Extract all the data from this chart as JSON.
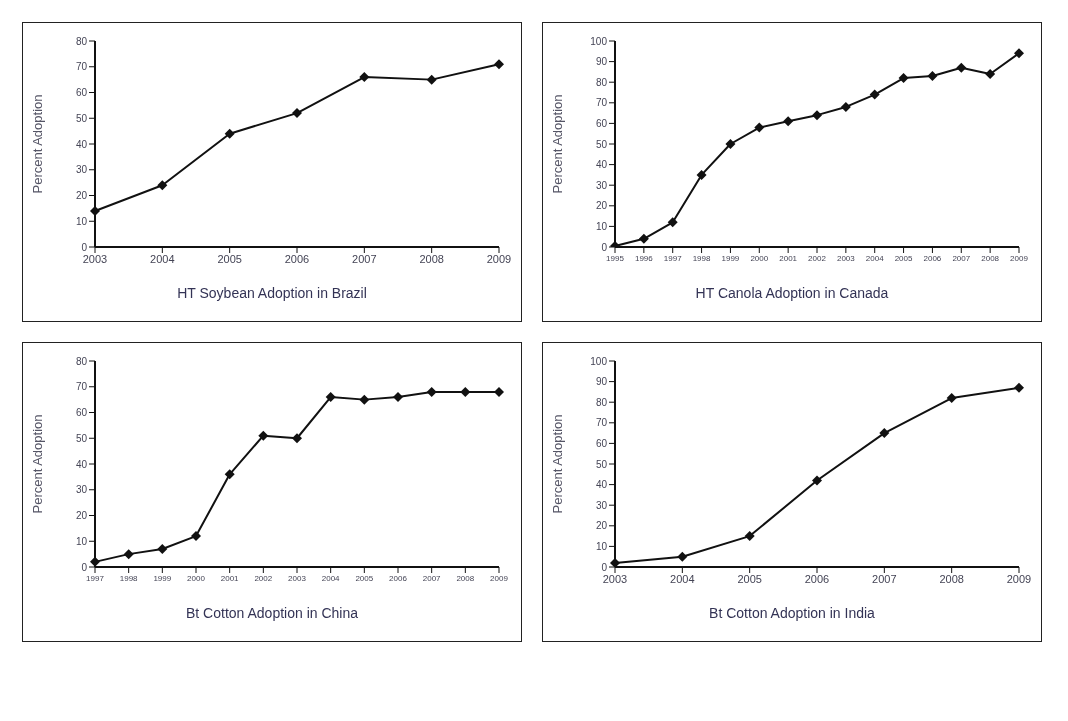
{
  "chart_data": [
    {
      "type": "line",
      "title": "HT Soybean Adoption in Brazil",
      "ylabel": "Percent Adoption",
      "categories": [
        "2003",
        "2004",
        "2005",
        "2006",
        "2007",
        "2008",
        "2009"
      ],
      "series": [
        {
          "color": "#111111",
          "values": [
            14,
            24,
            44,
            52,
            66,
            65,
            71
          ]
        }
      ],
      "ylim": [
        0,
        80
      ],
      "yticks": [
        0,
        10,
        20,
        30,
        40,
        50,
        60,
        70,
        80
      ],
      "marker": "diamond",
      "grid": false,
      "legend": false
    },
    {
      "type": "line",
      "title": "HT Canola Adoption in Canada",
      "ylabel": "Percent Adoption",
      "categories": [
        "1995",
        "1996",
        "1997",
        "1998",
        "1999",
        "2000",
        "2001",
        "2002",
        "2003",
        "2004",
        "2005",
        "2006",
        "2007",
        "2008",
        "2009"
      ],
      "series": [
        {
          "color": "#111111",
          "values": [
            0.5,
            4,
            12,
            35,
            50,
            58,
            61,
            64,
            68,
            74,
            82,
            83,
            87,
            84,
            94
          ]
        }
      ],
      "ylim": [
        0,
        100
      ],
      "yticks": [
        0,
        10,
        20,
        30,
        40,
        50,
        60,
        70,
        80,
        90,
        100
      ],
      "marker": "diamond",
      "grid": false,
      "legend": false
    },
    {
      "type": "line",
      "title": "Bt Cotton Adoption in China",
      "ylabel": "Percent Adoption",
      "categories": [
        "1997",
        "1998",
        "1999",
        "2000",
        "2001",
        "2002",
        "2003",
        "2004",
        "2005",
        "2006",
        "2007",
        "2008",
        "2009"
      ],
      "series": [
        {
          "color": "#111111",
          "values": [
            2,
            5,
            7,
            12,
            36,
            51,
            50,
            66,
            65,
            66,
            68,
            68,
            68
          ]
        }
      ],
      "ylim": [
        0,
        80
      ],
      "yticks": [
        0,
        10,
        20,
        30,
        40,
        50,
        60,
        70,
        80
      ],
      "marker": "diamond",
      "grid": false,
      "legend": false
    },
    {
      "type": "line",
      "title": "Bt Cotton Adoption in India",
      "ylabel": "Percent Adoption",
      "categories": [
        "2003",
        "2004",
        "2005",
        "2006",
        "2007",
        "2008",
        "2009"
      ],
      "series": [
        {
          "color": "#111111",
          "values": [
            2,
            5,
            15,
            42,
            65,
            82,
            87
          ]
        }
      ],
      "ylim": [
        0,
        100
      ],
      "yticks": [
        0,
        10,
        20,
        30,
        40,
        50,
        60,
        70,
        80,
        90,
        100
      ],
      "marker": "diamond",
      "grid": false,
      "legend": false
    }
  ]
}
